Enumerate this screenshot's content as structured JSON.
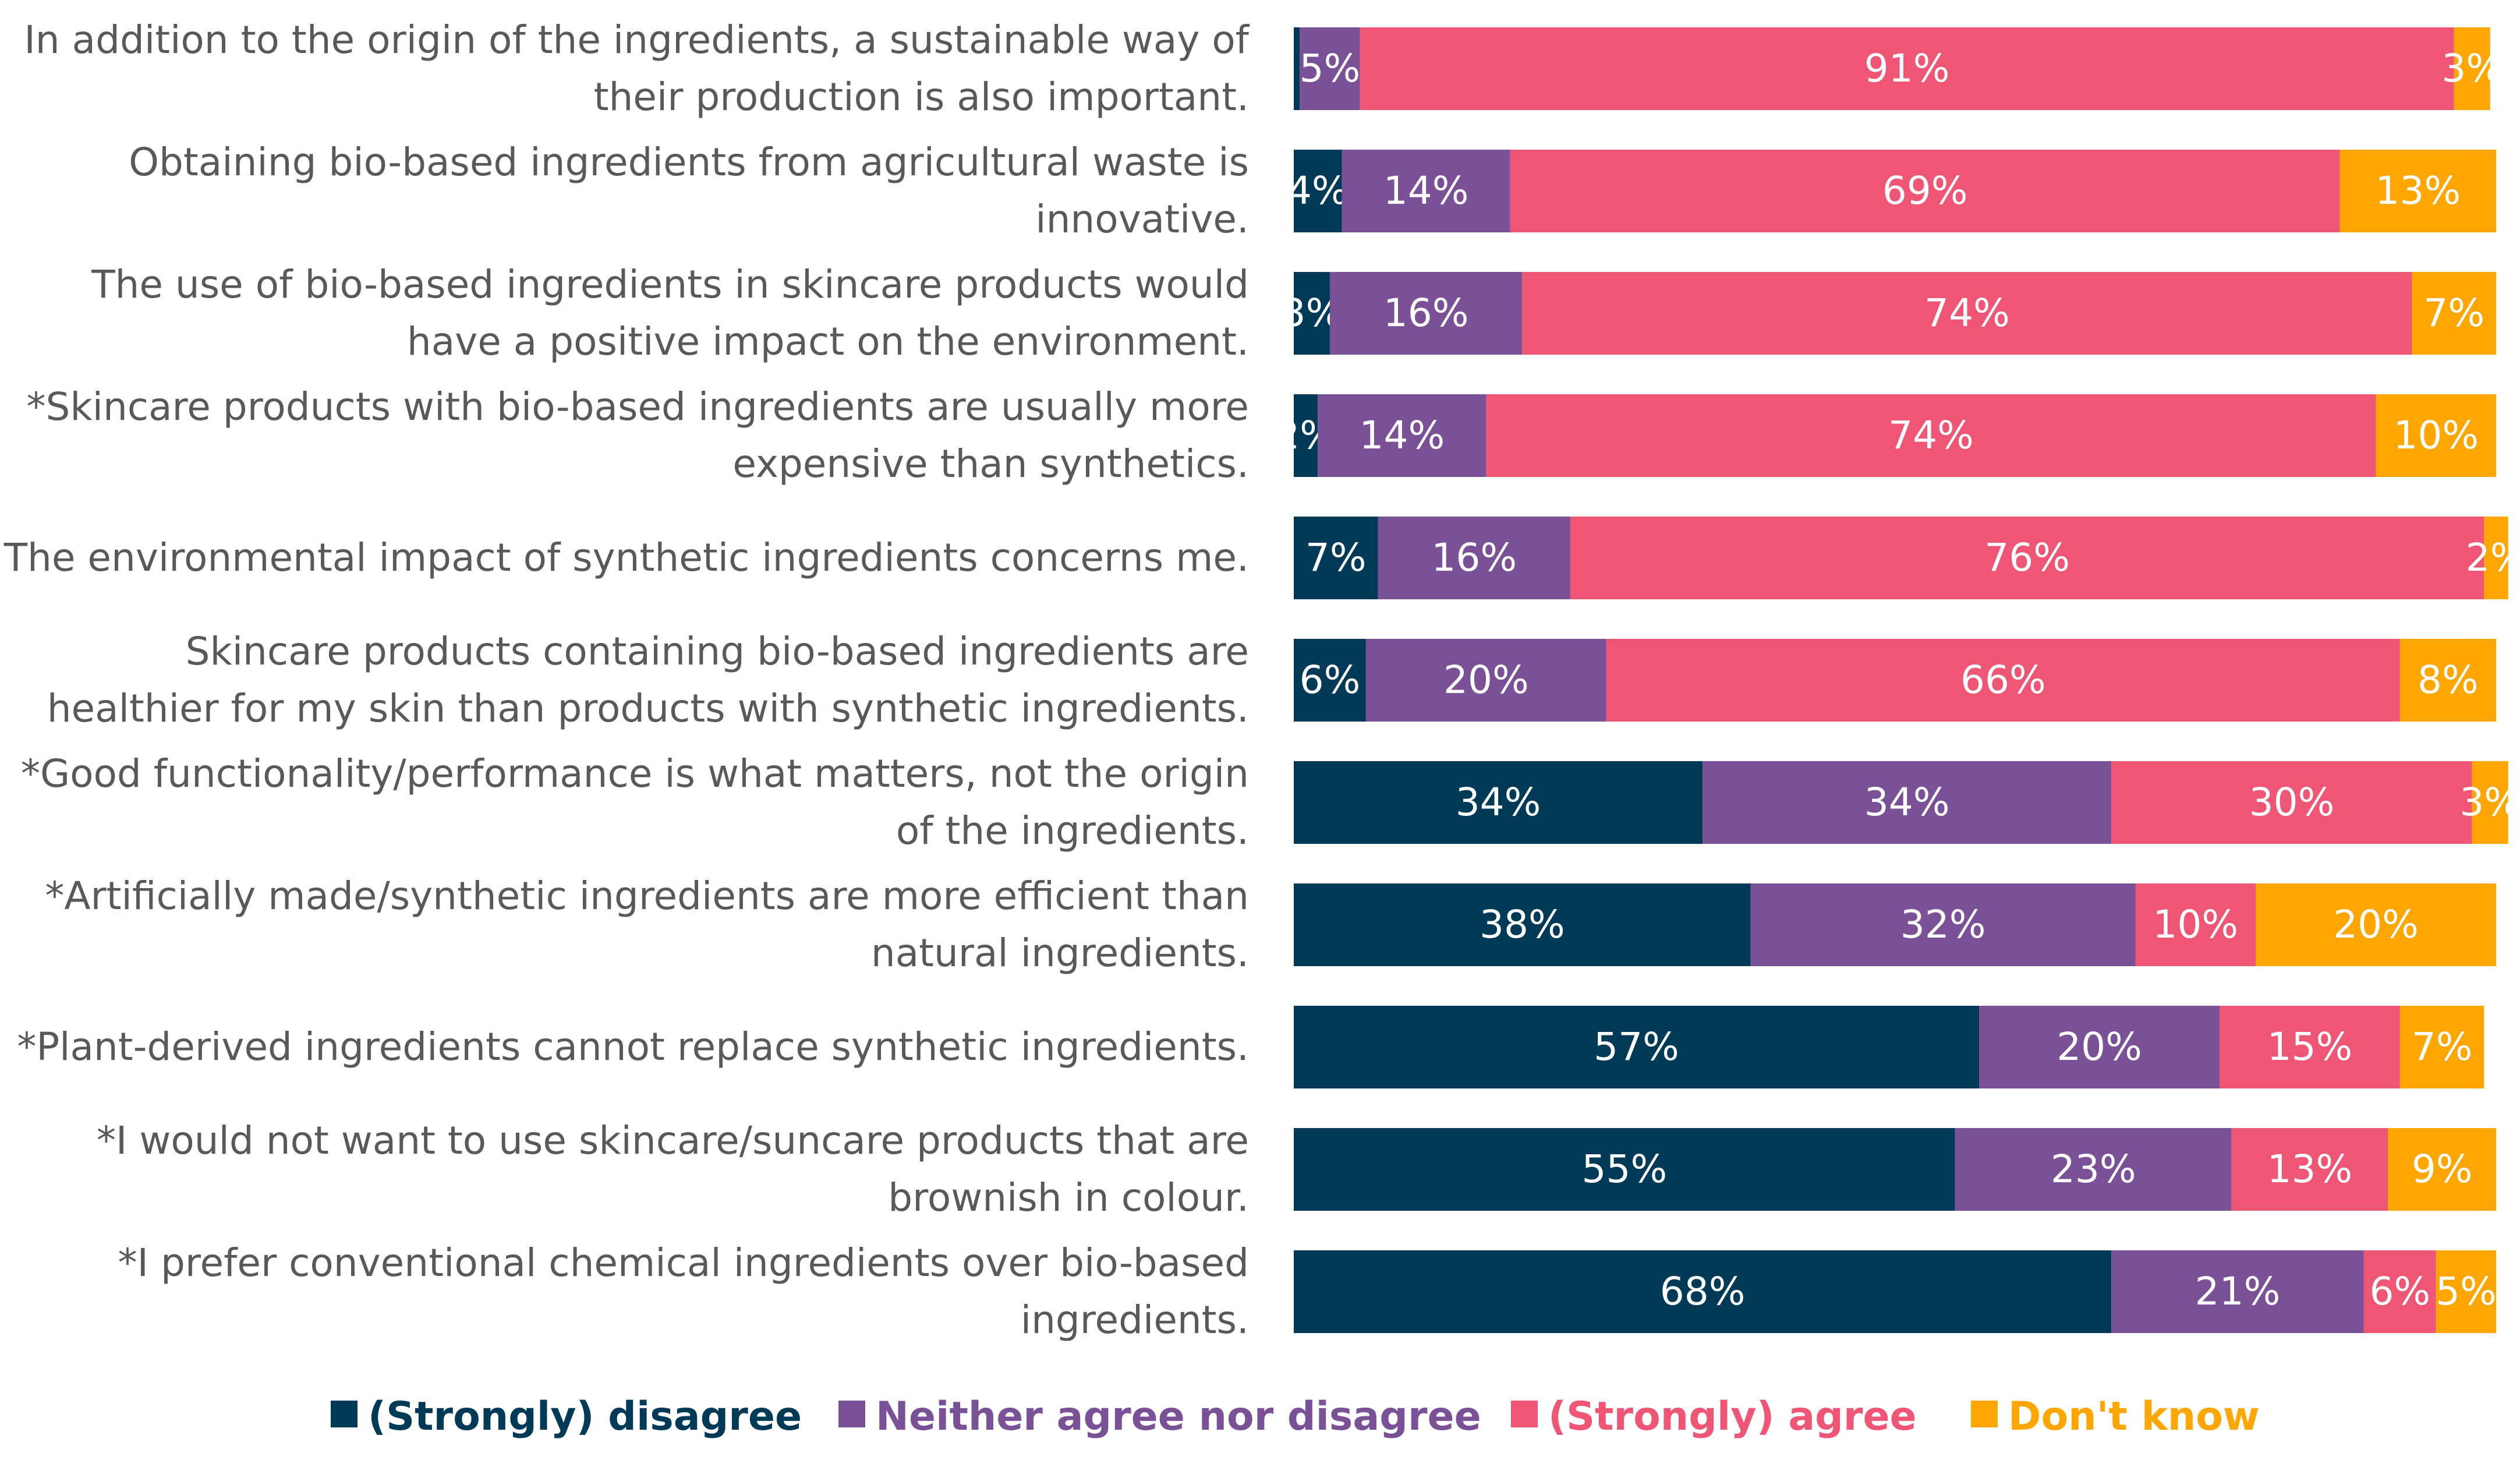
{
  "chart_data": {
    "type": "bar",
    "orientation": "horizontal",
    "stacked": "percent",
    "categories": [
      [
        "In addition to the origin of the ingredients, a sustainable way of",
        "their production is also important."
      ],
      [
        "Obtaining bio-based ingredients from agricultural waste is",
        "innovative."
      ],
      [
        "The use of bio-based ingredients in skincare products would",
        "have a positive impact on the environment."
      ],
      [
        "*Skincare products with bio-based ingredients are usually more",
        "expensive than synthetics."
      ],
      [
        "The environmental impact of synthetic ingredients concerns me."
      ],
      [
        "Skincare products containing bio-based ingredients are",
        "healthier for my skin than products with synthetic ingredients."
      ],
      [
        "*Good functionality/performance is what matters, not the origin",
        "of the ingredients."
      ],
      [
        "*Artificially made/synthetic ingredients are more efficient than",
        "natural ingredients."
      ],
      [
        "*Plant-derived ingredients cannot replace synthetic ingredients."
      ],
      [
        "*I would not want to use skincare/suncare products that are",
        "brownish in colour."
      ],
      [
        "*I prefer conventional chemical ingredients over bio-based",
        "ingredients."
      ]
    ],
    "series": [
      {
        "name": "(Strongly) disagree",
        "color": "#003A57",
        "values": [
          0.5,
          4,
          3,
          2,
          7,
          6,
          34,
          38,
          57,
          55,
          68
        ],
        "labels": [
          "",
          "4%",
          "3%",
          "2%",
          "7%",
          "6%",
          "34%",
          "38%",
          "57%",
          "55%",
          "68%"
        ]
      },
      {
        "name": "Neither agree nor disagree",
        "color": "#7A5196",
        "values": [
          5,
          14,
          16,
          14,
          16,
          20,
          34,
          32,
          20,
          23,
          21
        ],
        "labels": [
          "5%",
          "14%",
          "16%",
          "14%",
          "16%",
          "20%",
          "34%",
          "32%",
          "20%",
          "23%",
          "21%"
        ]
      },
      {
        "name": "(Strongly) agree",
        "color": "#EF5675",
        "values": [
          91,
          69,
          74,
          74,
          76,
          66,
          30,
          10,
          15,
          13,
          6
        ],
        "labels": [
          "91%",
          "69%",
          "74%",
          "74%",
          "76%",
          "66%",
          "30%",
          "10%",
          "15%",
          "13%",
          "6%"
        ]
      },
      {
        "name": "Don't know",
        "color": "#FFA600",
        "values": [
          3,
          13,
          7,
          10,
          2,
          8,
          3,
          20,
          7,
          9,
          5
        ],
        "labels": [
          "3%",
          "13%",
          "7%",
          "10%",
          "2%",
          "8%",
          "3%",
          "20%",
          "7%",
          "9%",
          "5%"
        ]
      }
    ],
    "xlim": [
      0,
      100
    ],
    "xlabel": "",
    "ylabel": "",
    "title": "",
    "grid": false,
    "legend": "bottom"
  }
}
